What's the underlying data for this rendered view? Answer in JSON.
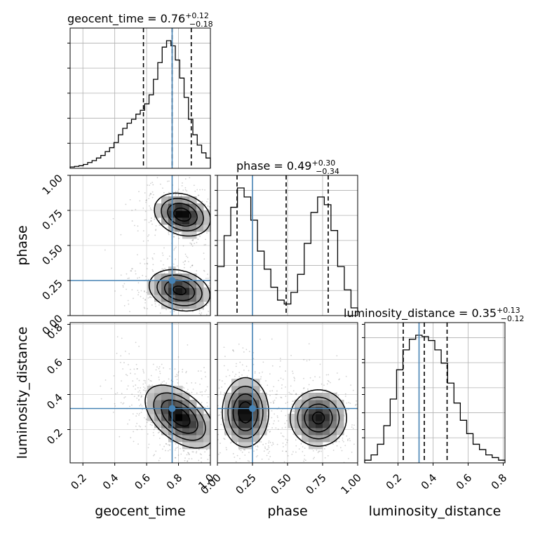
{
  "chart_data": {
    "type": "corner",
    "parameters": [
      {
        "name": "geocent_time",
        "axis_label": "geocent_time",
        "title_prefix": "geocent_time = 0.76",
        "median": 0.76,
        "plus": "+0.12",
        "minus": "−0.18",
        "quantiles": [
          0.58,
          0.76,
          0.88
        ],
        "truth": 0.76,
        "range": [
          0.12,
          1.0
        ],
        "ticks": [
          {
            "v": 0.2,
            "t": "0.2"
          },
          {
            "v": 0.4,
            "t": "0.4"
          },
          {
            "v": 0.6,
            "t": "0.6"
          },
          {
            "v": 0.8,
            "t": "0.8"
          },
          {
            "v": 1.0,
            "t": "1.0"
          }
        ],
        "hist": [
          0.01,
          0.015,
          0.02,
          0.03,
          0.045,
          0.06,
          0.08,
          0.1,
          0.13,
          0.16,
          0.2,
          0.26,
          0.31,
          0.35,
          0.38,
          0.42,
          0.45,
          0.5,
          0.57,
          0.69,
          0.82,
          0.94,
          0.99,
          0.95,
          0.84,
          0.7,
          0.55,
          0.38,
          0.26,
          0.18,
          0.12,
          0.08
        ]
      },
      {
        "name": "phase",
        "axis_label": "phase",
        "title_prefix": "phase = 0.49",
        "median": 0.49,
        "plus": "+0.30",
        "minus": "−0.34",
        "quantiles": [
          0.14,
          0.49,
          0.79
        ],
        "truth": 0.25,
        "range": [
          0.0,
          1.0
        ],
        "ticks": [
          {
            "v": 0.0,
            "t": "0.00"
          },
          {
            "v": 0.25,
            "t": "0.25"
          },
          {
            "v": 0.5,
            "t": "0.50"
          },
          {
            "v": 0.75,
            "t": "0.75"
          },
          {
            "v": 1.0,
            "t": "1.00"
          }
        ],
        "hist": [
          0.38,
          0.62,
          0.84,
          0.99,
          0.92,
          0.74,
          0.5,
          0.36,
          0.22,
          0.12,
          0.09,
          0.18,
          0.32,
          0.56,
          0.8,
          0.92,
          0.86,
          0.66,
          0.38,
          0.2,
          0.06
        ]
      },
      {
        "name": "luminosity_distance",
        "axis_label": "luminosity_distance",
        "title_prefix": "luminosity_distance = 0.35",
        "median": 0.35,
        "plus": "+0.13",
        "minus": "−0.12",
        "quantiles": [
          0.23,
          0.35,
          0.48
        ],
        "truth": 0.32,
        "range": [
          0.01,
          0.81
        ],
        "ticks": [
          {
            "v": 0.2,
            "t": "0.2"
          },
          {
            "v": 0.4,
            "t": "0.4"
          },
          {
            "v": 0.6,
            "t": "0.6"
          },
          {
            "v": 0.8,
            "t": "0.8"
          }
        ],
        "hist": [
          0.02,
          0.06,
          0.14,
          0.28,
          0.48,
          0.7,
          0.85,
          0.93,
          0.96,
          0.95,
          0.92,
          0.85,
          0.75,
          0.6,
          0.45,
          0.32,
          0.22,
          0.14,
          0.1,
          0.06,
          0.04,
          0.02
        ]
      }
    ],
    "truth_point_color": "#4682b4",
    "line_color": "#000000",
    "grid": true,
    "contours": [
      {
        "row": 1,
        "col": 0,
        "blobs": [
          {
            "cx": 0.8,
            "cy": 0.72,
            "sx": 0.1,
            "sy": 0.07,
            "rot": -20,
            "peak": 1.0
          },
          {
            "cx": 0.78,
            "cy": 0.18,
            "sx": 0.11,
            "sy": 0.07,
            "rot": -15,
            "peak": 0.9
          }
        ],
        "levels": [
          0.12,
          0.3,
          0.55,
          0.82
        ]
      },
      {
        "row": 2,
        "col": 0,
        "blobs": [
          {
            "cx": 0.78,
            "cy": 0.33,
            "sx": 0.14,
            "sy": 0.08,
            "rot": -40,
            "peak": 1.0
          }
        ],
        "levels": [
          0.12,
          0.3,
          0.55,
          0.82
        ]
      },
      {
        "row": 2,
        "col": 1,
        "blobs": [
          {
            "cx": 0.2,
            "cy": 0.36,
            "sx": 0.08,
            "sy": 0.12,
            "rot": 0,
            "peak": 1.0
          },
          {
            "cx": 0.72,
            "cy": 0.32,
            "sx": 0.1,
            "sy": 0.1,
            "rot": 0,
            "peak": 0.9
          }
        ],
        "levels": [
          0.12,
          0.3,
          0.55,
          0.82
        ]
      }
    ]
  }
}
